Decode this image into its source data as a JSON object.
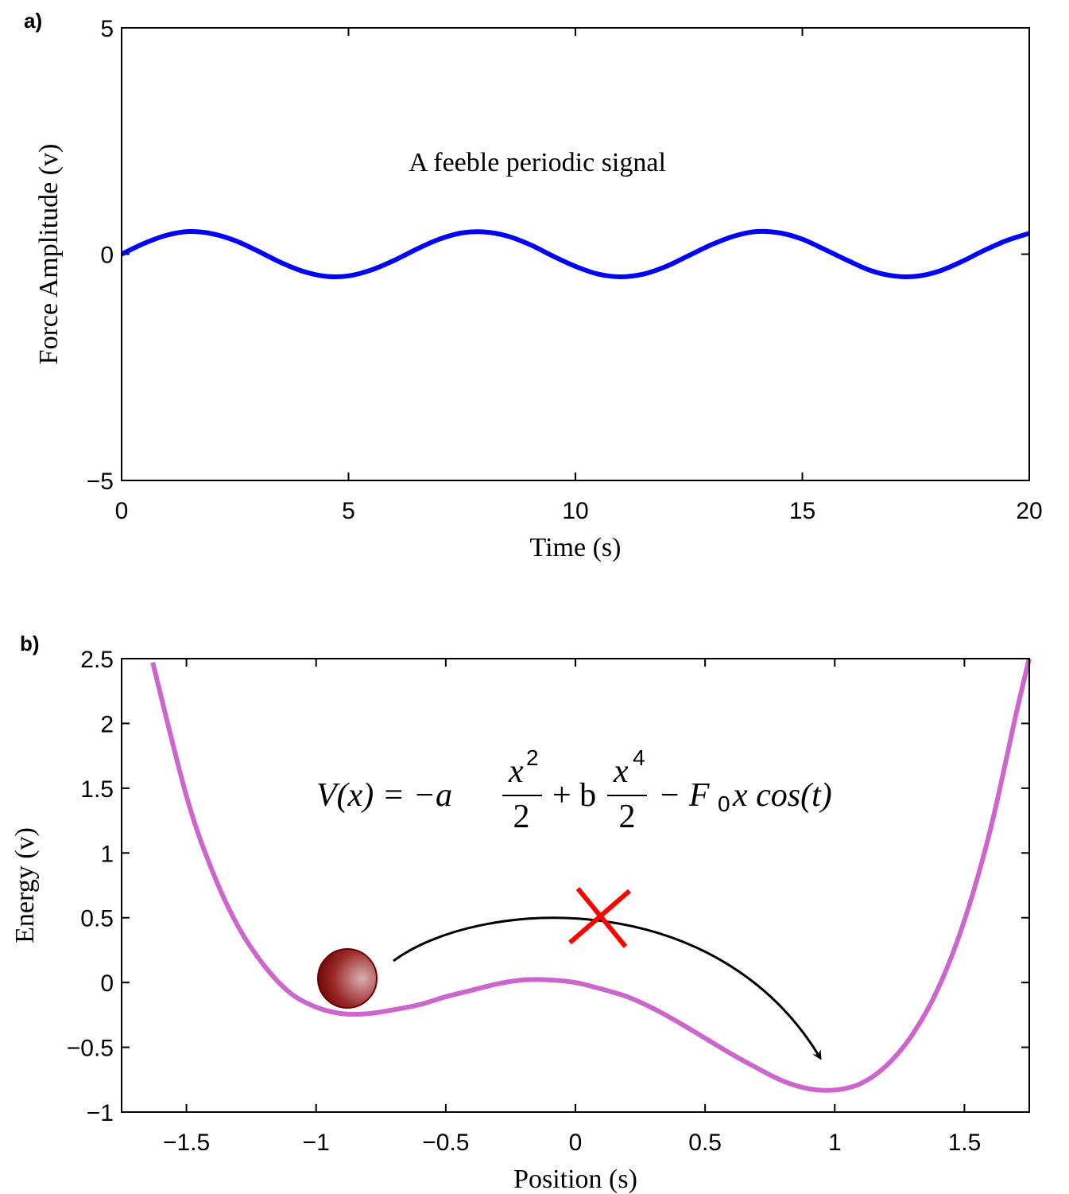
{
  "chart_data": [
    {
      "type": "line",
      "panel_label": "a)",
      "xlabel": "Time (s)",
      "ylabel": "Force Amplitude (v)",
      "annotation": "A feeble periodic signal",
      "x": [
        0,
        0.5,
        1,
        1.5,
        2,
        2.5,
        3,
        3.5,
        4,
        4.5,
        5,
        5.5,
        6,
        6.5,
        7,
        7.5,
        8,
        8.5,
        9,
        9.5,
        10,
        10.5,
        11,
        11.5,
        12,
        12.5,
        13,
        13.5,
        14,
        14.5,
        15,
        15.5,
        16,
        16.5,
        17,
        17.5,
        18,
        18.5,
        19,
        19.5,
        20
      ],
      "series": [
        {
          "color": "#0000ff",
          "values": [
            0,
            0.24,
            0.42,
            0.5,
            0.45,
            0.3,
            0.07,
            -0.18,
            -0.38,
            -0.49,
            -0.48,
            -0.35,
            -0.14,
            0.11,
            0.33,
            0.47,
            0.49,
            0.4,
            0.21,
            -0.04,
            -0.27,
            -0.44,
            -0.5,
            -0.44,
            -0.27,
            -0.03,
            0.21,
            0.4,
            0.5,
            0.47,
            0.33,
            0.1,
            -0.14,
            -0.36,
            -0.48,
            -0.49,
            -0.38,
            -0.17,
            0.08,
            0.3,
            0.46
          ]
        }
      ],
      "xlim": [
        0,
        20
      ],
      "xticks": [
        0,
        5,
        10,
        15,
        20
      ],
      "ylim": [
        -5,
        5
      ],
      "yticks": [
        {
          "value": -5,
          "label": "−5"
        },
        0,
        5
      ]
    },
    {
      "type": "line",
      "panel_label": "b)",
      "xlabel": "Position (s)",
      "ylabel": "Energy (v)",
      "formula": {
        "lhs": "V(x) = −a",
        "num1": "x",
        "exp1": "2",
        "den1": "2",
        "mid": "+ b",
        "num2": "x",
        "exp2": "4",
        "den2": "2",
        "tail": "− F",
        "sub": "0",
        "end": "x cos(t)"
      },
      "x": [
        -1.63,
        -1.5,
        -1.4,
        -1.3,
        -1.2,
        -1.1,
        -1.0,
        -0.9,
        -0.8,
        -0.7,
        -0.6,
        -0.5,
        -0.4,
        -0.3,
        -0.2,
        -0.1,
        0,
        0.1,
        0.2,
        0.3,
        0.4,
        0.5,
        0.6,
        0.7,
        0.8,
        0.9,
        1.0,
        1.1,
        1.2,
        1.3,
        1.4,
        1.5,
        1.6,
        1.7,
        1.75
      ],
      "series": [
        {
          "color": "#cc66cc",
          "values": [
            2.47,
            1.44,
            0.86,
            0.43,
            0.13,
            -0.08,
            -0.19,
            -0.24,
            -0.24,
            -0.21,
            -0.17,
            -0.11,
            -0.06,
            -0.01,
            0.02,
            0.02,
            0,
            -0.05,
            -0.11,
            -0.2,
            -0.31,
            -0.43,
            -0.55,
            -0.66,
            -0.76,
            -0.82,
            -0.83,
            -0.78,
            -0.64,
            -0.4,
            -0.04,
            0.48,
            1.18,
            2.08,
            2.5
          ]
        }
      ],
      "xlim": [
        -1.75,
        1.75
      ],
      "xticks": [
        {
          "value": -1.5,
          "label": "−1.5"
        },
        {
          "value": -1,
          "label": "−1"
        },
        {
          "value": -0.5,
          "label": "−0.5"
        },
        0,
        0.5,
        1,
        1.5
      ],
      "ylim": [
        -1,
        2.5
      ],
      "yticks": [
        {
          "value": -1,
          "label": "−1"
        },
        {
          "value": -0.5,
          "label": "−0.5"
        },
        0,
        0.5,
        1,
        1.5,
        2,
        2.5
      ]
    }
  ]
}
